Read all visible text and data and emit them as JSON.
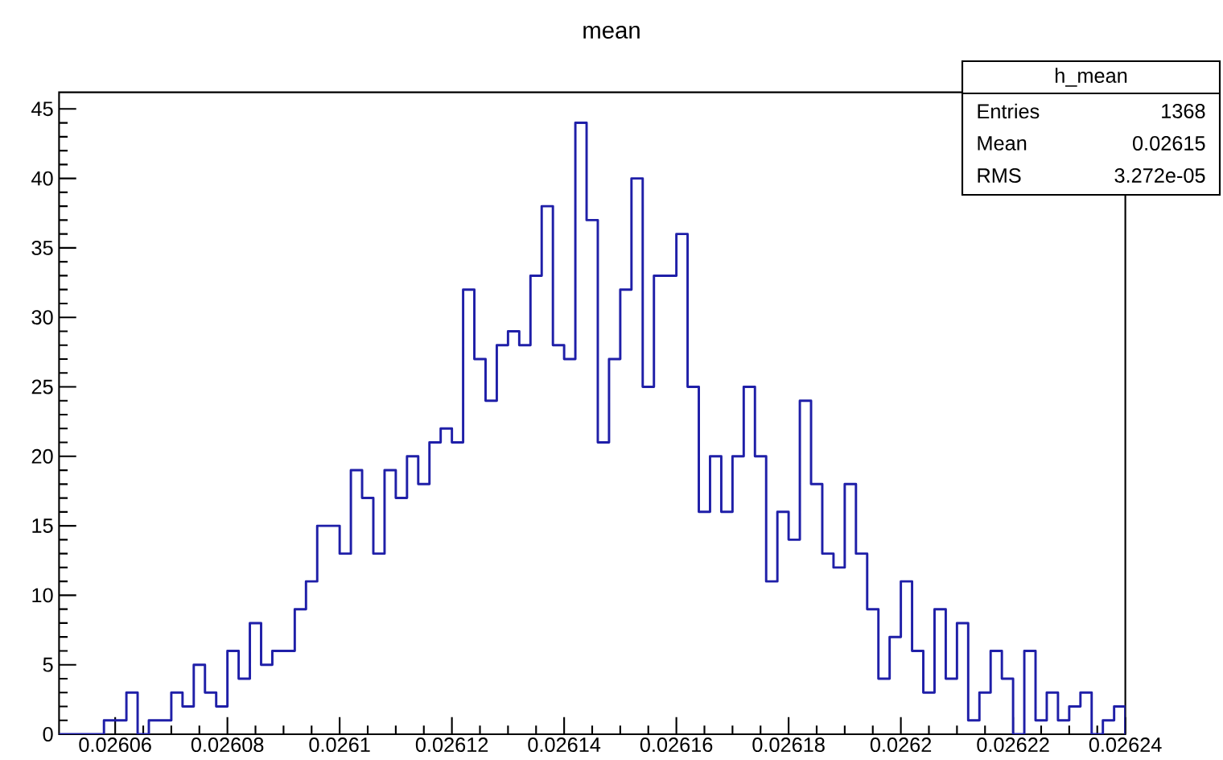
{
  "chart_data": {
    "type": "histogram",
    "title": "mean",
    "bins": [
      0.02605,
      0.026052,
      0.026054,
      0.026056,
      0.026058,
      0.02606,
      0.026062,
      0.026064,
      0.026066,
      0.026068,
      0.02607,
      0.026072,
      0.026074,
      0.026076,
      0.026078,
      0.02608,
      0.026082,
      0.026084,
      0.026086,
      0.026088,
      0.02609,
      0.026092,
      0.026094,
      0.026096,
      0.026098,
      0.0261,
      0.026102,
      0.026104,
      0.026106,
      0.026108,
      0.02611,
      0.026112,
      0.026114,
      0.026116,
      0.026118,
      0.02612,
      0.026122,
      0.026124,
      0.026126,
      0.026128,
      0.02613,
      0.026132,
      0.026134,
      0.026136,
      0.026138,
      0.02614,
      0.026142,
      0.026144,
      0.026146,
      0.026148,
      0.02615,
      0.026152,
      0.026154,
      0.026156,
      0.026158,
      0.02616,
      0.026162,
      0.026164,
      0.026166,
      0.026168,
      0.02617,
      0.026172,
      0.026174,
      0.026176,
      0.026178,
      0.02618,
      0.026182,
      0.026184,
      0.026186,
      0.026188,
      0.02619,
      0.026192,
      0.026194,
      0.026196,
      0.026198,
      0.0262,
      0.026202,
      0.026204,
      0.026206,
      0.026208,
      0.02621,
      0.026212,
      0.026214,
      0.026216,
      0.026218,
      0.02622,
      0.026222,
      0.026224,
      0.026226,
      0.026228,
      0.02623,
      0.026232,
      0.026234,
      0.026236,
      0.026238,
      0.02624
    ],
    "values": [
      0,
      0,
      0,
      0,
      1,
      1,
      3,
      0,
      1,
      1,
      3,
      2,
      5,
      3,
      2,
      6,
      4,
      8,
      5,
      6,
      6,
      9,
      11,
      15,
      15,
      13,
      19,
      17,
      13,
      19,
      17,
      20,
      18,
      21,
      22,
      21,
      32,
      27,
      24,
      28,
      29,
      28,
      33,
      38,
      28,
      27,
      44,
      37,
      21,
      27,
      32,
      40,
      25,
      33,
      33,
      36,
      25,
      16,
      20,
      16,
      20,
      25,
      20,
      11,
      16,
      14,
      24,
      18,
      13,
      12,
      18,
      13,
      9,
      4,
      7,
      11,
      6,
      3,
      9,
      4,
      8,
      1,
      3,
      6,
      4,
      0,
      6,
      1,
      3,
      1,
      2,
      3,
      0,
      1,
      2
    ],
    "color": "#1f1fa8",
    "xlim": [
      0.02605,
      0.02624
    ],
    "xticks": [
      0.02606,
      0.02608,
      0.0261,
      0.02612,
      0.02614,
      0.02616,
      0.02618,
      0.0262,
      0.02622,
      0.02624
    ],
    "ylim": [
      0,
      46.2
    ],
    "yticks": [
      0,
      5,
      10,
      15,
      20,
      25,
      30,
      35,
      40,
      45
    ],
    "grid": false,
    "annotations": [
      "h_mean",
      "Entries",
      "1368",
      "Mean",
      "0.02615",
      "RMS",
      "3.272e-05"
    ]
  }
}
